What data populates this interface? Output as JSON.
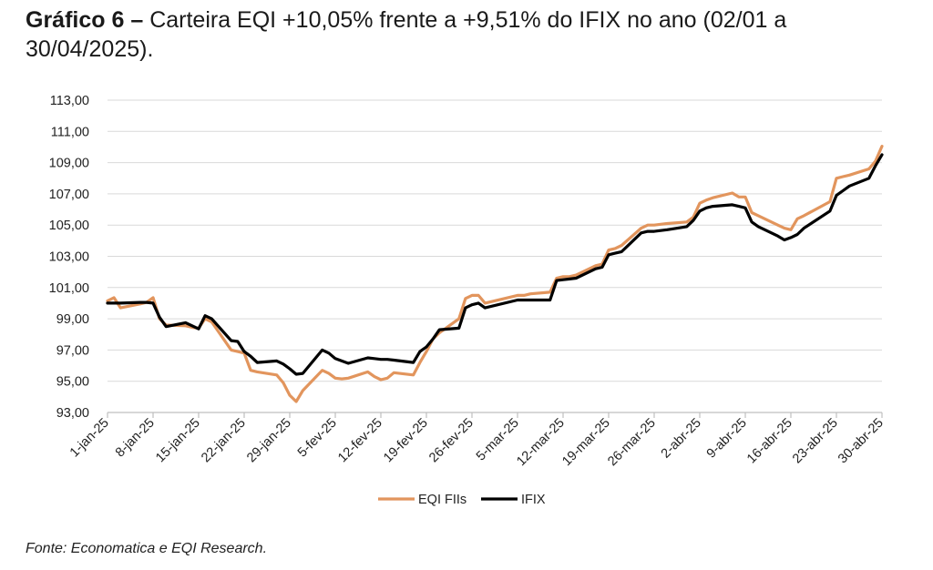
{
  "caption": {
    "label": "Gráfico 6 –",
    "text": "Carteira EQI +10,05% frente a +9,51% do IFIX no ano (02/01 a 30/04/2025)."
  },
  "source": "Fonte: Economatica e EQI Research.",
  "colors": {
    "eqi": "#E2955D",
    "ifix": "#000000",
    "grid": "#d9d9d9",
    "axis": "#bfbfbf"
  },
  "chart_data": {
    "type": "line",
    "title": "",
    "xlabel": "",
    "ylabel": "",
    "ylim": [
      93,
      113
    ],
    "yticks": [
      "93,00",
      "95,00",
      "97,00",
      "99,00",
      "101,00",
      "103,00",
      "105,00",
      "107,00",
      "109,00",
      "111,00",
      "113,00"
    ],
    "xlim": [
      "2025-01-01",
      "2025-04-30"
    ],
    "xticks": [
      {
        "date": "2025-01-01",
        "label": "1-jan-25"
      },
      {
        "date": "2025-01-08",
        "label": "8-jan-25"
      },
      {
        "date": "2025-01-15",
        "label": "15-jan-25"
      },
      {
        "date": "2025-01-22",
        "label": "22-jan-25"
      },
      {
        "date": "2025-01-29",
        "label": "29-jan-25"
      },
      {
        "date": "2025-02-05",
        "label": "5-fev-25"
      },
      {
        "date": "2025-02-12",
        "label": "12-fev-25"
      },
      {
        "date": "2025-02-19",
        "label": "19-fev-25"
      },
      {
        "date": "2025-02-26",
        "label": "26-fev-25"
      },
      {
        "date": "2025-03-05",
        "label": "5-mar-25"
      },
      {
        "date": "2025-03-12",
        "label": "12-mar-25"
      },
      {
        "date": "2025-03-19",
        "label": "19-mar-25"
      },
      {
        "date": "2025-03-26",
        "label": "26-mar-25"
      },
      {
        "date": "2025-04-02",
        "label": "2-abr-25"
      },
      {
        "date": "2025-04-09",
        "label": "9-abr-25"
      },
      {
        "date": "2025-04-16",
        "label": "16-abr-25"
      },
      {
        "date": "2025-04-23",
        "label": "23-abr-25"
      },
      {
        "date": "2025-04-30",
        "label": "30-abr-25"
      }
    ],
    "legend_position": "bottom",
    "grid": true,
    "series": [
      {
        "name": "EQI FIIs",
        "color": "#E2955D",
        "points": [
          [
            "2025-01-01",
            100.15
          ],
          [
            "2025-01-02",
            100.35
          ],
          [
            "2025-01-03",
            99.7
          ],
          [
            "2025-01-06",
            99.95
          ],
          [
            "2025-01-07",
            100.05
          ],
          [
            "2025-01-08",
            100.35
          ],
          [
            "2025-01-09",
            99.0
          ],
          [
            "2025-01-10",
            98.6
          ],
          [
            "2025-01-13",
            98.55
          ],
          [
            "2025-01-14",
            98.45
          ],
          [
            "2025-01-15",
            98.4
          ],
          [
            "2025-01-16",
            99.0
          ],
          [
            "2025-01-17",
            98.8
          ],
          [
            "2025-01-20",
            97.0
          ],
          [
            "2025-01-21",
            96.9
          ],
          [
            "2025-01-22",
            96.8
          ],
          [
            "2025-01-23",
            95.7
          ],
          [
            "2025-01-24",
            95.6
          ],
          [
            "2025-01-27",
            95.4
          ],
          [
            "2025-01-28",
            94.9
          ],
          [
            "2025-01-29",
            94.1
          ],
          [
            "2025-01-30",
            93.7
          ],
          [
            "2025-01-31",
            94.4
          ],
          [
            "2025-02-03",
            95.7
          ],
          [
            "2025-02-04",
            95.5
          ],
          [
            "2025-02-05",
            95.2
          ],
          [
            "2025-02-06",
            95.15
          ],
          [
            "2025-02-07",
            95.2
          ],
          [
            "2025-02-10",
            95.6
          ],
          [
            "2025-02-11",
            95.3
          ],
          [
            "2025-02-12",
            95.1
          ],
          [
            "2025-02-13",
            95.2
          ],
          [
            "2025-02-14",
            95.55
          ],
          [
            "2025-02-17",
            95.4
          ],
          [
            "2025-02-18",
            96.2
          ],
          [
            "2025-02-19",
            96.9
          ],
          [
            "2025-02-20",
            97.7
          ],
          [
            "2025-02-21",
            98.1
          ],
          [
            "2025-02-24",
            99.0
          ],
          [
            "2025-02-25",
            100.3
          ],
          [
            "2025-02-26",
            100.5
          ],
          [
            "2025-02-27",
            100.5
          ],
          [
            "2025-02-28",
            100.0
          ],
          [
            "2025-03-05",
            100.5
          ],
          [
            "2025-03-06",
            100.5
          ],
          [
            "2025-03-07",
            100.6
          ],
          [
            "2025-03-10",
            100.7
          ],
          [
            "2025-03-11",
            101.6
          ],
          [
            "2025-03-12",
            101.7
          ],
          [
            "2025-03-13",
            101.7
          ],
          [
            "2025-03-14",
            101.8
          ],
          [
            "2025-03-17",
            102.4
          ],
          [
            "2025-03-18",
            102.5
          ],
          [
            "2025-03-19",
            103.4
          ],
          [
            "2025-03-20",
            103.5
          ],
          [
            "2025-03-21",
            103.7
          ],
          [
            "2025-03-24",
            104.8
          ],
          [
            "2025-03-25",
            105.0
          ],
          [
            "2025-03-26",
            105.0
          ],
          [
            "2025-03-27",
            105.05
          ],
          [
            "2025-03-28",
            105.1
          ],
          [
            "2025-03-31",
            105.2
          ],
          [
            "2025-04-01",
            105.5
          ],
          [
            "2025-04-02",
            106.4
          ],
          [
            "2025-04-03",
            106.6
          ],
          [
            "2025-04-04",
            106.75
          ],
          [
            "2025-04-07",
            107.05
          ],
          [
            "2025-04-08",
            106.8
          ],
          [
            "2025-04-09",
            106.8
          ],
          [
            "2025-04-10",
            105.8
          ],
          [
            "2025-04-11",
            105.6
          ],
          [
            "2025-04-14",
            105.0
          ],
          [
            "2025-04-15",
            104.8
          ],
          [
            "2025-04-16",
            104.7
          ],
          [
            "2025-04-17",
            105.4
          ],
          [
            "2025-04-18",
            105.6
          ],
          [
            "2025-04-22",
            106.5
          ],
          [
            "2025-04-23",
            108.0
          ],
          [
            "2025-04-24",
            108.1
          ],
          [
            "2025-04-25",
            108.2
          ],
          [
            "2025-04-28",
            108.6
          ],
          [
            "2025-04-29",
            109.1
          ],
          [
            "2025-04-30",
            110.05
          ]
        ]
      },
      {
        "name": "IFIX",
        "color": "#000000",
        "points": [
          [
            "2025-01-01",
            100.0
          ],
          [
            "2025-01-02",
            100.0
          ],
          [
            "2025-01-03",
            100.0
          ],
          [
            "2025-01-06",
            100.05
          ],
          [
            "2025-01-07",
            100.05
          ],
          [
            "2025-01-08",
            100.0
          ],
          [
            "2025-01-09",
            99.1
          ],
          [
            "2025-01-10",
            98.5
          ],
          [
            "2025-01-13",
            98.75
          ],
          [
            "2025-01-14",
            98.55
          ],
          [
            "2025-01-15",
            98.35
          ],
          [
            "2025-01-16",
            99.2
          ],
          [
            "2025-01-17",
            99.0
          ],
          [
            "2025-01-20",
            97.6
          ],
          [
            "2025-01-21",
            97.55
          ],
          [
            "2025-01-22",
            96.9
          ],
          [
            "2025-01-23",
            96.6
          ],
          [
            "2025-01-24",
            96.2
          ],
          [
            "2025-01-27",
            96.3
          ],
          [
            "2025-01-28",
            96.1
          ],
          [
            "2025-01-29",
            95.8
          ],
          [
            "2025-01-30",
            95.45
          ],
          [
            "2025-01-31",
            95.5
          ],
          [
            "2025-02-03",
            97.0
          ],
          [
            "2025-02-04",
            96.8
          ],
          [
            "2025-02-05",
            96.45
          ],
          [
            "2025-02-06",
            96.3
          ],
          [
            "2025-02-07",
            96.15
          ],
          [
            "2025-02-10",
            96.5
          ],
          [
            "2025-02-11",
            96.45
          ],
          [
            "2025-02-12",
            96.4
          ],
          [
            "2025-02-13",
            96.4
          ],
          [
            "2025-02-14",
            96.35
          ],
          [
            "2025-02-17",
            96.2
          ],
          [
            "2025-02-18",
            96.9
          ],
          [
            "2025-02-19",
            97.2
          ],
          [
            "2025-02-20",
            97.7
          ],
          [
            "2025-02-21",
            98.3
          ],
          [
            "2025-02-24",
            98.4
          ],
          [
            "2025-02-25",
            99.7
          ],
          [
            "2025-02-26",
            99.9
          ],
          [
            "2025-02-27",
            100.0
          ],
          [
            "2025-02-28",
            99.7
          ],
          [
            "2025-03-05",
            100.2
          ],
          [
            "2025-03-06",
            100.2
          ],
          [
            "2025-03-07",
            100.2
          ],
          [
            "2025-03-10",
            100.2
          ],
          [
            "2025-03-11",
            101.45
          ],
          [
            "2025-03-12",
            101.5
          ],
          [
            "2025-03-13",
            101.55
          ],
          [
            "2025-03-14",
            101.6
          ],
          [
            "2025-03-17",
            102.2
          ],
          [
            "2025-03-18",
            102.3
          ],
          [
            "2025-03-19",
            103.1
          ],
          [
            "2025-03-20",
            103.2
          ],
          [
            "2025-03-21",
            103.3
          ],
          [
            "2025-03-24",
            104.5
          ],
          [
            "2025-03-25",
            104.6
          ],
          [
            "2025-03-26",
            104.6
          ],
          [
            "2025-03-27",
            104.65
          ],
          [
            "2025-03-28",
            104.7
          ],
          [
            "2025-03-31",
            104.9
          ],
          [
            "2025-04-01",
            105.3
          ],
          [
            "2025-04-02",
            105.9
          ],
          [
            "2025-04-03",
            106.1
          ],
          [
            "2025-04-04",
            106.2
          ],
          [
            "2025-04-07",
            106.3
          ],
          [
            "2025-04-08",
            106.2
          ],
          [
            "2025-04-09",
            106.1
          ],
          [
            "2025-04-10",
            105.2
          ],
          [
            "2025-04-11",
            104.9
          ],
          [
            "2025-04-14",
            104.3
          ],
          [
            "2025-04-15",
            104.05
          ],
          [
            "2025-04-16",
            104.2
          ],
          [
            "2025-04-17",
            104.4
          ],
          [
            "2025-04-18",
            104.8
          ],
          [
            "2025-04-22",
            105.9
          ],
          [
            "2025-04-23",
            106.9
          ],
          [
            "2025-04-24",
            107.2
          ],
          [
            "2025-04-25",
            107.5
          ],
          [
            "2025-04-28",
            108.0
          ],
          [
            "2025-04-29",
            108.8
          ],
          [
            "2025-04-30",
            109.51
          ]
        ]
      }
    ]
  }
}
